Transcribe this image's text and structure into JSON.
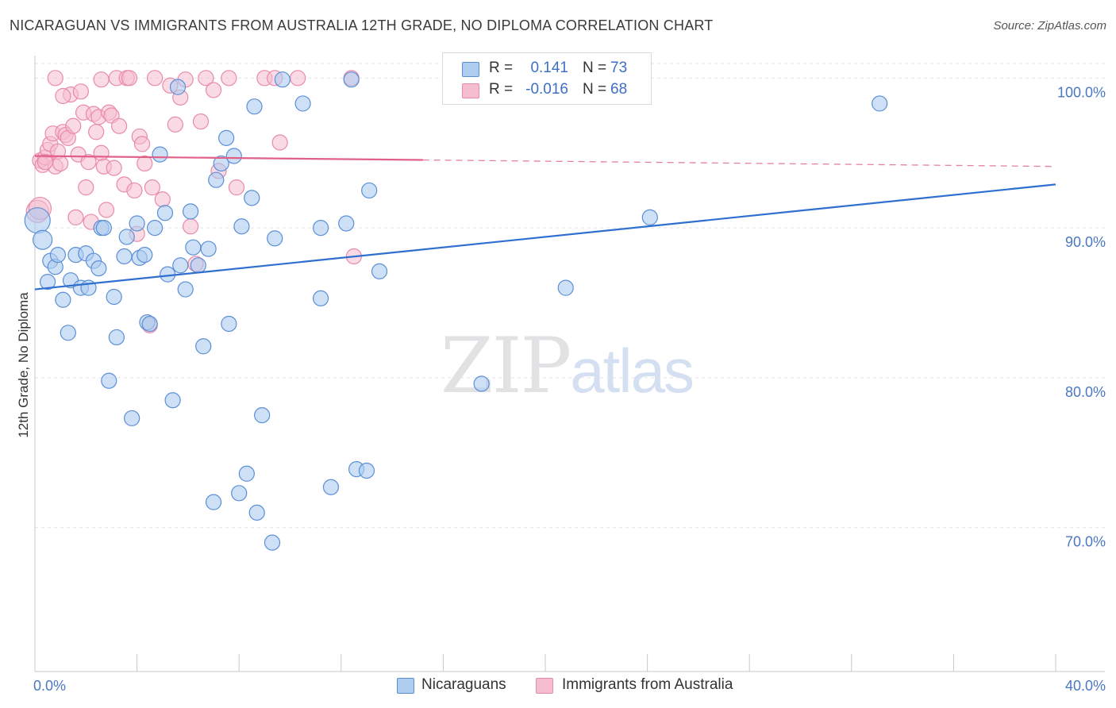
{
  "title": "NICARAGUAN VS IMMIGRANTS FROM AUSTRALIA 12TH GRADE, NO DIPLOMA CORRELATION CHART",
  "source": "Source: ZipAtlas.com",
  "watermark": {
    "zip": "ZIP",
    "atlas": "atlas"
  },
  "colors": {
    "blue_fill": "#aecbf0",
    "blue_stroke": "#5b8fd6",
    "blue_line": "#2f6fd0",
    "pink_fill": "#f6bdd0",
    "pink_stroke": "#e98aa9",
    "pink_line": "#e0608a",
    "tick_text": "#4a78c2"
  },
  "legend_top": [
    {
      "r_label": "R =",
      "r_value": "0.141",
      "n_label": "N =",
      "n_value": "73"
    },
    {
      "r_label": "R =",
      "r_value": "-0.016",
      "n_label": "N =",
      "n_value": "68"
    }
  ],
  "legend_bottom": [
    "Nicaraguans",
    "Immigrants from Australia"
  ],
  "chart_data": {
    "type": "scatter",
    "title": "NICARAGUAN VS IMMIGRANTS FROM AUSTRALIA 12TH GRADE, NO DIPLOMA CORRELATION CHART",
    "xlabel": "",
    "ylabel": "12th Grade, No Diploma",
    "xlim": [
      0,
      40
    ],
    "ylim": [
      60.4,
      101.5
    ],
    "x_tick_labels": [
      {
        "value": 0,
        "label": "0.0%"
      },
      {
        "value": 40,
        "label": "40.0%"
      }
    ],
    "x_minor_ticks": [
      0,
      4,
      8,
      12,
      16,
      20,
      24,
      28,
      32,
      36,
      40
    ],
    "y_tick_labels": [
      {
        "value": 100,
        "label": "100.0%"
      },
      {
        "value": 90,
        "label": "90.0%"
      },
      {
        "value": 80,
        "label": "80.0%"
      },
      {
        "value": 70,
        "label": "70.0%"
      }
    ],
    "grid": true,
    "series": [
      {
        "name": "Nicaraguans",
        "R": 0.141,
        "N": 73,
        "trend": {
          "x": [
            0,
            40
          ],
          "y": [
            85.9,
            92.9
          ],
          "dashed_from_x": null
        },
        "points": [
          [
            0.1,
            90.5
          ],
          [
            0.3,
            89.2
          ],
          [
            0.5,
            86.4
          ],
          [
            0.6,
            87.8
          ],
          [
            0.8,
            87.4
          ],
          [
            0.9,
            88.2
          ],
          [
            1.1,
            85.2
          ],
          [
            1.3,
            83.0
          ],
          [
            1.4,
            86.5
          ],
          [
            1.6,
            88.2
          ],
          [
            1.8,
            86.0
          ],
          [
            2.0,
            88.3
          ],
          [
            2.1,
            86.0
          ],
          [
            2.3,
            87.8
          ],
          [
            2.5,
            87.3
          ],
          [
            2.6,
            90.0
          ],
          [
            2.7,
            90.0
          ],
          [
            2.9,
            79.8
          ],
          [
            3.1,
            85.4
          ],
          [
            3.2,
            82.7
          ],
          [
            3.5,
            88.1
          ],
          [
            3.6,
            89.4
          ],
          [
            3.8,
            77.3
          ],
          [
            4.0,
            90.3
          ],
          [
            4.1,
            88.0
          ],
          [
            4.3,
            88.2
          ],
          [
            4.4,
            83.7
          ],
          [
            4.5,
            83.6
          ],
          [
            4.7,
            90.0
          ],
          [
            4.9,
            94.9
          ],
          [
            5.1,
            91.0
          ],
          [
            5.2,
            86.9
          ],
          [
            5.4,
            78.5
          ],
          [
            5.6,
            99.4
          ],
          [
            5.7,
            87.5
          ],
          [
            5.9,
            85.9
          ],
          [
            6.1,
            91.1
          ],
          [
            6.2,
            88.7
          ],
          [
            6.4,
            87.5
          ],
          [
            6.6,
            82.1
          ],
          [
            6.8,
            88.6
          ],
          [
            7.0,
            71.7
          ],
          [
            7.1,
            93.2
          ],
          [
            7.3,
            94.3
          ],
          [
            7.5,
            96.0
          ],
          [
            7.6,
            83.6
          ],
          [
            7.8,
            94.8
          ],
          [
            8.0,
            72.3
          ],
          [
            8.1,
            90.1
          ],
          [
            8.3,
            73.6
          ],
          [
            8.5,
            92.0
          ],
          [
            8.6,
            98.1
          ],
          [
            8.7,
            71.0
          ],
          [
            8.9,
            77.5
          ],
          [
            9.3,
            69.0
          ],
          [
            9.4,
            89.3
          ],
          [
            9.7,
            99.9
          ],
          [
            10.5,
            98.3
          ],
          [
            11.2,
            90.0
          ],
          [
            11.2,
            85.3
          ],
          [
            11.6,
            72.7
          ],
          [
            12.2,
            90.3
          ],
          [
            12.4,
            99.9
          ],
          [
            12.6,
            73.9
          ],
          [
            13.0,
            73.8
          ],
          [
            13.1,
            92.5
          ],
          [
            13.5,
            87.1
          ],
          [
            17.5,
            79.6
          ],
          [
            20.8,
            86.0
          ],
          [
            23.5,
            99.9
          ],
          [
            23.6,
            99.9
          ],
          [
            24.1,
            90.7
          ],
          [
            33.1,
            98.3
          ]
        ]
      },
      {
        "name": "Immigrants from Australia",
        "R": -0.016,
        "N": 68,
        "trend": {
          "x": [
            0,
            40
          ],
          "y": [
            94.8,
            94.1
          ],
          "dashed_from_x": 15.2
        },
        "points": [
          [
            0.1,
            91.1
          ],
          [
            0.2,
            94.5
          ],
          [
            0.3,
            94.2
          ],
          [
            0.4,
            94.7
          ],
          [
            0.5,
            95.2
          ],
          [
            0.6,
            95.6
          ],
          [
            0.7,
            96.3
          ],
          [
            0.8,
            94.1
          ],
          [
            0.9,
            95.1
          ],
          [
            1.0,
            94.3
          ],
          [
            1.1,
            96.4
          ],
          [
            1.2,
            96.2
          ],
          [
            1.3,
            96.0
          ],
          [
            1.4,
            98.9
          ],
          [
            1.5,
            96.8
          ],
          [
            1.6,
            90.7
          ],
          [
            1.7,
            94.9
          ],
          [
            1.8,
            99.1
          ],
          [
            1.9,
            97.7
          ],
          [
            2.0,
            92.7
          ],
          [
            2.1,
            94.4
          ],
          [
            2.2,
            90.4
          ],
          [
            2.3,
            97.6
          ],
          [
            2.4,
            96.4
          ],
          [
            2.5,
            97.4
          ],
          [
            2.6,
            95.0
          ],
          [
            2.7,
            94.1
          ],
          [
            2.8,
            91.2
          ],
          [
            2.9,
            97.7
          ],
          [
            3.0,
            97.5
          ],
          [
            3.1,
            94.0
          ],
          [
            3.2,
            100.0
          ],
          [
            3.3,
            96.8
          ],
          [
            3.5,
            92.9
          ],
          [
            3.6,
            100.0
          ],
          [
            3.7,
            100.0
          ],
          [
            3.9,
            92.5
          ],
          [
            4.0,
            89.6
          ],
          [
            4.1,
            96.1
          ],
          [
            4.2,
            95.6
          ],
          [
            4.3,
            94.3
          ],
          [
            4.5,
            83.5
          ],
          [
            4.6,
            92.7
          ],
          [
            4.7,
            100.0
          ],
          [
            5.0,
            91.9
          ],
          [
            5.3,
            99.5
          ],
          [
            5.5,
            96.9
          ],
          [
            5.7,
            98.7
          ],
          [
            5.9,
            99.9
          ],
          [
            6.1,
            90.1
          ],
          [
            6.3,
            87.6
          ],
          [
            6.5,
            97.1
          ],
          [
            6.7,
            100.0
          ],
          [
            7.0,
            99.2
          ],
          [
            7.2,
            93.8
          ],
          [
            7.6,
            100.0
          ],
          [
            7.9,
            92.7
          ],
          [
            9.0,
            100.0
          ],
          [
            9.4,
            100.0
          ],
          [
            9.6,
            95.7
          ],
          [
            10.3,
            100.0
          ],
          [
            12.4,
            100.0
          ],
          [
            12.5,
            88.1
          ],
          [
            0.2,
            91.3
          ],
          [
            0.4,
            94.4
          ],
          [
            0.8,
            100.0
          ],
          [
            1.1,
            98.8
          ],
          [
            2.6,
            99.9
          ]
        ]
      }
    ]
  }
}
